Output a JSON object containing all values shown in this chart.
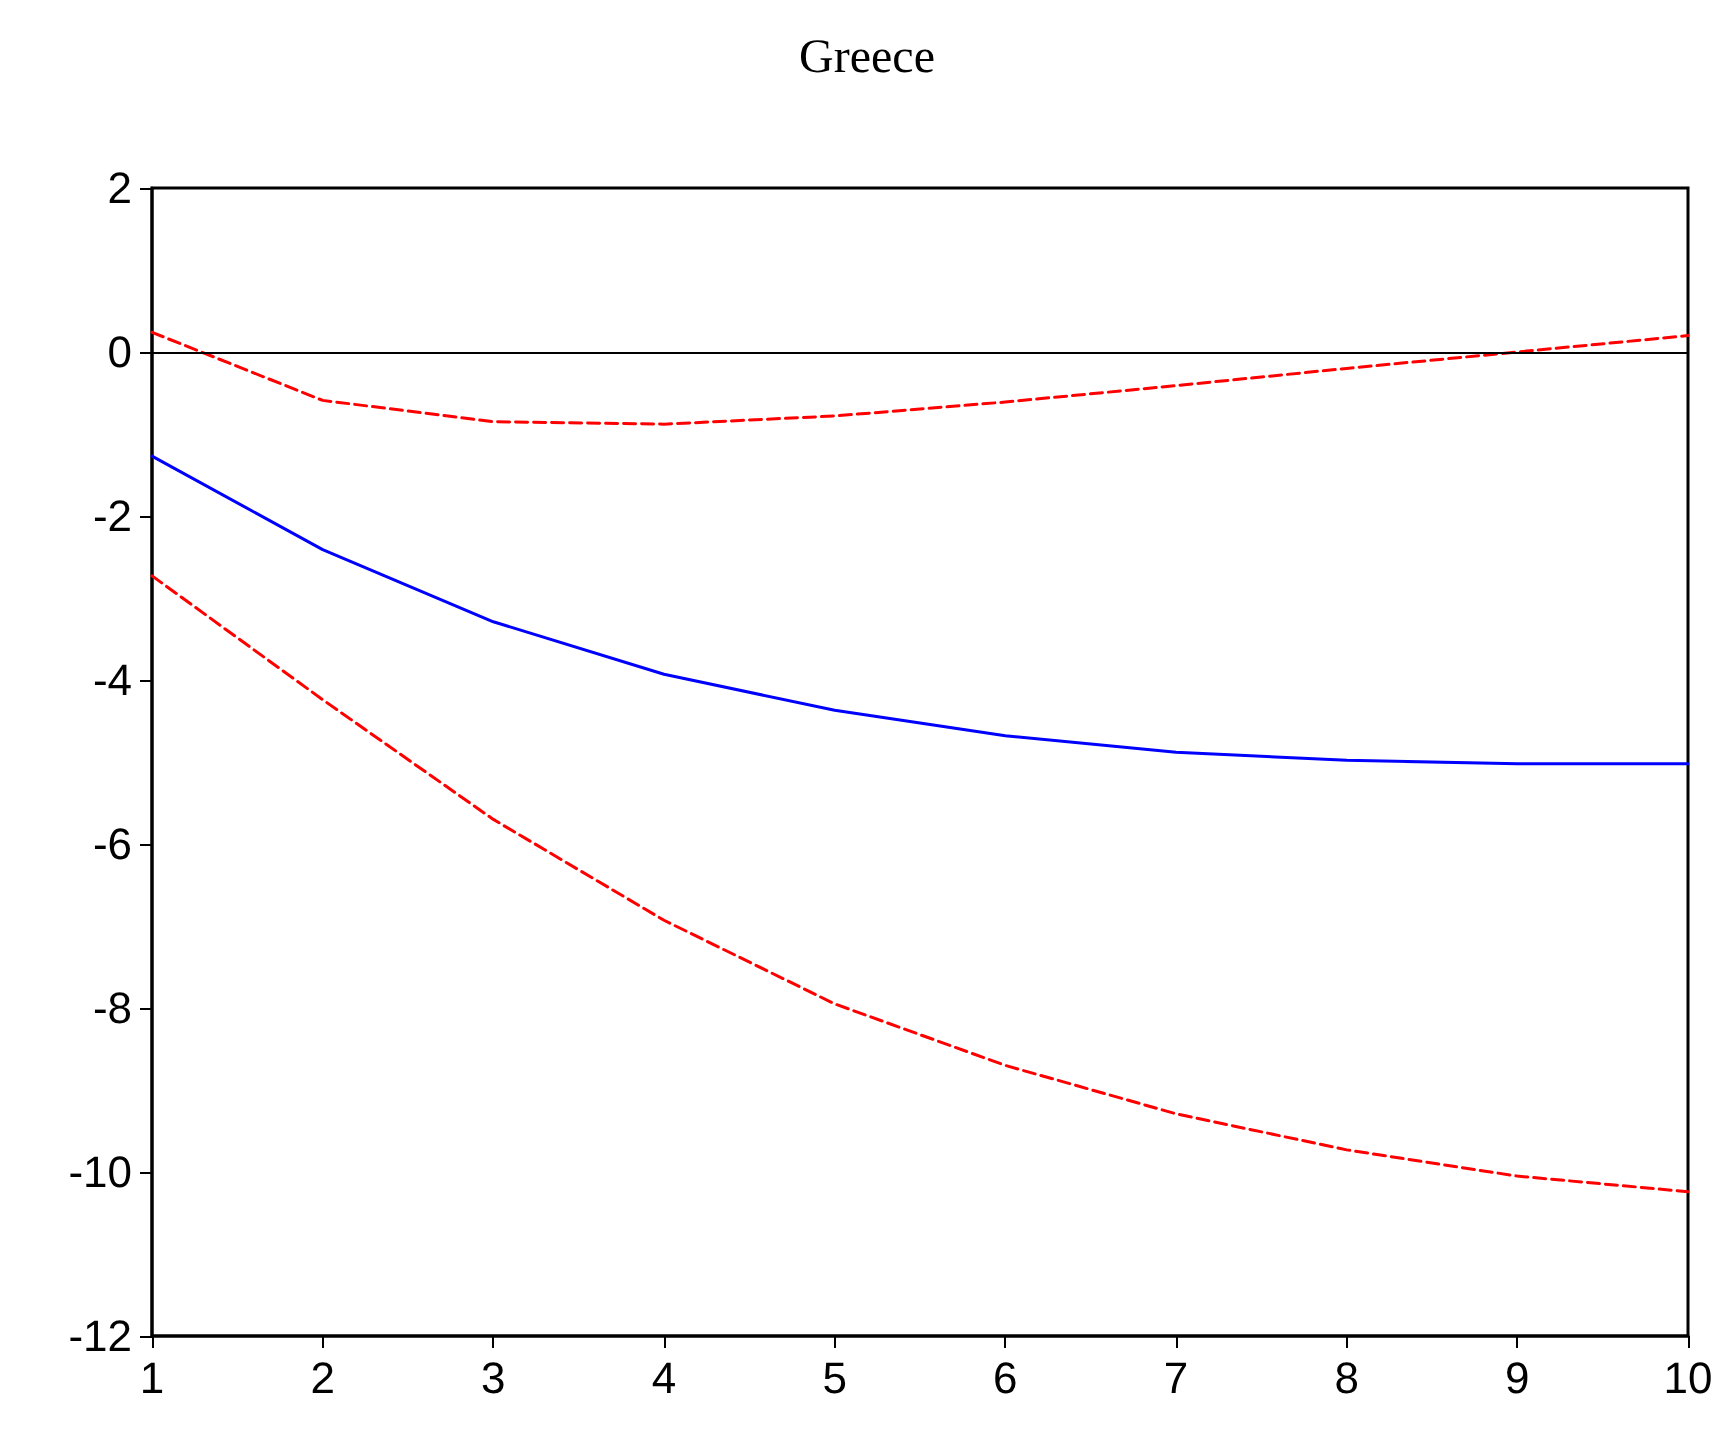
{
  "chart_data": {
    "type": "line",
    "title": "Greece",
    "x": [
      1,
      2,
      3,
      4,
      5,
      6,
      7,
      8,
      9,
      10
    ],
    "series": [
      {
        "color": "#0000ff",
        "line_style": "solid",
        "values": [
          -1.27,
          -2.41,
          -3.29,
          -3.93,
          -4.37,
          -4.68,
          -4.88,
          -4.98,
          -5.02,
          -5.02
        ]
      },
      {
        "color": "#ff0000",
        "line_style": "dashed",
        "values": [
          0.24,
          -0.59,
          -0.85,
          -0.88,
          -0.78,
          -0.61,
          -0.41,
          -0.2,
          0,
          0.2
        ]
      },
      {
        "color": "#ff0000",
        "line_style": "dashed",
        "values": [
          -2.73,
          -4.24,
          -5.7,
          -6.93,
          -7.95,
          -8.7,
          -9.29,
          -9.73,
          -10.05,
          -10.24
        ]
      }
    ],
    "xlim": [
      1,
      10
    ],
    "xticks": [
      1,
      2,
      3,
      4,
      5,
      6,
      7,
      8,
      9,
      10
    ],
    "ylim": [
      -12,
      2
    ],
    "yticks": [
      -12,
      -10,
      -8,
      -6,
      -4,
      -2,
      0,
      2
    ],
    "ref_lines": [
      {
        "axis": "y",
        "value": 0,
        "color": "#000000",
        "line_style": "solid"
      }
    ],
    "grid": false
  }
}
